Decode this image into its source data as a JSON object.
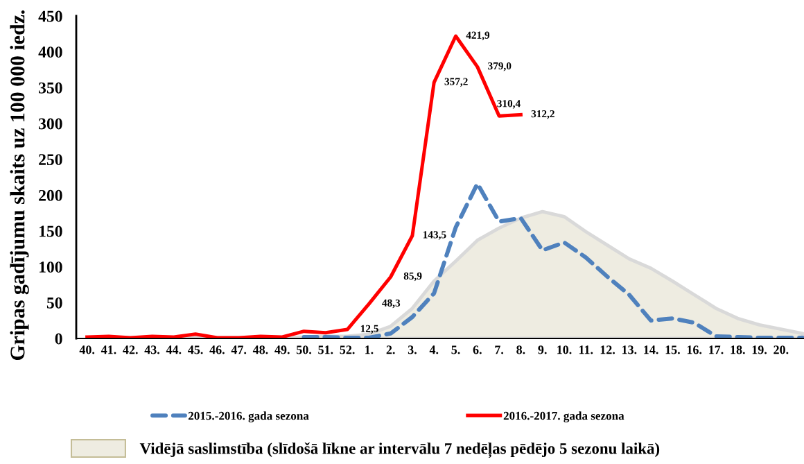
{
  "chart_data": {
    "type": "line",
    "ylabel": "Gripas gadījumu skaits uz 100 000 iedz.",
    "categories": [
      "40.",
      "41.",
      "42.",
      "43.",
      "44.",
      "45.",
      "46.",
      "47.",
      "48.",
      "49.",
      "50.",
      "51.",
      "52.",
      "1.",
      "2.",
      "3.",
      "4.",
      "5.",
      "6.",
      "7.",
      "8.",
      "9.",
      "10.",
      "11.",
      "12.",
      "13.",
      "14.",
      "15.",
      "16.",
      "17.",
      "18.",
      "19.",
      "20.",
      null
    ],
    "ylim": [
      0,
      450
    ],
    "yticks": [
      0,
      50,
      100,
      150,
      200,
      250,
      300,
      350,
      400,
      450
    ],
    "grid": false,
    "legend": "bottom",
    "series": [
      {
        "name": "2015.-2016. gada sezona",
        "color": "#4f81bd",
        "line_style": "dashed",
        "values": [
          null,
          null,
          null,
          null,
          null,
          null,
          null,
          null,
          null,
          null,
          2,
          2,
          1,
          1,
          7,
          30,
          63,
          155,
          216,
          163,
          168,
          123,
          134,
          113,
          86,
          61,
          25,
          28,
          22,
          3,
          2,
          1,
          1,
          1
        ]
      },
      {
        "name": "2016.-2017. gada sezona",
        "color": "#ff0000",
        "line_style": "solid",
        "values": [
          2,
          3,
          1,
          3,
          2,
          6,
          1,
          1,
          3,
          2,
          10,
          8,
          12.5,
          48.3,
          85.9,
          143.5,
          357.2,
          421.9,
          379.0,
          310.4,
          312.2,
          null,
          null,
          null,
          null,
          null,
          null,
          null,
          null,
          null,
          null,
          null,
          null,
          null
        ],
        "value_labels": [
          null,
          null,
          null,
          null,
          null,
          null,
          null,
          null,
          null,
          null,
          null,
          null,
          "12,5",
          "48,3",
          "85,9",
          "143,5",
          "357,2",
          "421,9",
          "379,0",
          "310,4",
          "312,2",
          null,
          null,
          null,
          null,
          null,
          null,
          null,
          null,
          null,
          null,
          null,
          null,
          null
        ]
      },
      {
        "name": "Vidējā saslimstība (slīdošā līkne ar intervālu 7 nedēļas pēdējo 5 sezonu laikā)",
        "type": "area",
        "color": "#eeece1",
        "values": [
          1,
          1,
          1,
          1,
          1,
          1,
          1,
          1,
          1,
          1,
          2,
          3,
          3,
          6,
          17,
          42,
          80,
          108,
          137,
          154,
          168,
          177,
          170,
          149,
          130,
          111,
          98,
          80,
          61,
          42,
          28,
          19,
          13,
          7
        ]
      }
    ]
  }
}
